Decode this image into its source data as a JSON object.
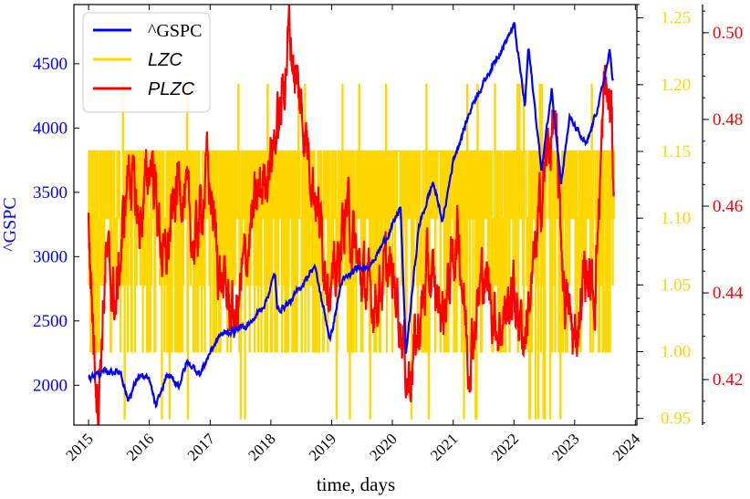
{
  "chart_data": {
    "type": "line",
    "xlabel": "time, days",
    "x_ticks": [
      "2015",
      "2016",
      "2017",
      "2018",
      "2019",
      "2020",
      "2021",
      "2022",
      "2023",
      "2024"
    ],
    "x_range": [
      "2014-10-05",
      "2024-01-10"
    ],
    "legend_position": "top-left",
    "axes": [
      {
        "id": "gspc",
        "label": "^GSPC",
        "side": "left",
        "color": "#0000ff",
        "range": [
          1690,
          4960
        ],
        "ticks": [
          2000,
          2500,
          3000,
          3500,
          4000,
          4500
        ]
      },
      {
        "id": "lzc",
        "label": "",
        "side": "right",
        "color": "#ffd700",
        "range": [
          0.945,
          1.26
        ],
        "ticks": [
          "0.95",
          "1.00",
          "1.05",
          "1.10",
          "1.15",
          "1.20",
          "1.25"
        ]
      },
      {
        "id": "plzc",
        "label": "",
        "side": "right-outer",
        "color": "#ff0000",
        "range": [
          0.4095,
          0.5065
        ],
        "ticks": [
          "0.42",
          "0.44",
          "0.46",
          "0.48",
          "0.50"
        ]
      }
    ],
    "series": [
      {
        "name": "^GSPC",
        "axis": "gspc",
        "color": "#0000ff",
        "legend_style": "serif",
        "points": [
          [
            "2015-01-01",
            2058
          ],
          [
            "2015-03-01",
            2090
          ],
          [
            "2015-05-15",
            2110
          ],
          [
            "2015-07-15",
            2100
          ],
          [
            "2015-08-25",
            1880
          ],
          [
            "2015-11-01",
            2080
          ],
          [
            "2016-01-01",
            2040
          ],
          [
            "2016-02-11",
            1830
          ],
          [
            "2016-04-15",
            2080
          ],
          [
            "2016-06-27",
            2000
          ],
          [
            "2016-08-15",
            2180
          ],
          [
            "2016-11-04",
            2090
          ],
          [
            "2017-01-01",
            2260
          ],
          [
            "2017-03-01",
            2390
          ],
          [
            "2017-06-01",
            2430
          ],
          [
            "2017-09-01",
            2480
          ],
          [
            "2017-12-01",
            2650
          ],
          [
            "2018-01-26",
            2870
          ],
          [
            "2018-02-08",
            2580
          ],
          [
            "2018-05-01",
            2650
          ],
          [
            "2018-09-20",
            2930
          ],
          [
            "2018-12-24",
            2350
          ],
          [
            "2019-03-01",
            2800
          ],
          [
            "2019-06-01",
            2900
          ],
          [
            "2019-09-01",
            2950
          ],
          [
            "2019-12-31",
            3230
          ],
          [
            "2020-02-19",
            3390
          ],
          [
            "2020-03-23",
            2240
          ],
          [
            "2020-06-08",
            3230
          ],
          [
            "2020-09-02",
            3580
          ],
          [
            "2020-10-30",
            3270
          ],
          [
            "2021-01-01",
            3750
          ],
          [
            "2021-05-01",
            4200
          ],
          [
            "2021-09-01",
            4500
          ],
          [
            "2022-01-03",
            4800
          ],
          [
            "2022-03-08",
            4170
          ],
          [
            "2022-03-29",
            4630
          ],
          [
            "2022-06-16",
            3670
          ],
          [
            "2022-08-16",
            4300
          ],
          [
            "2022-10-12",
            3580
          ],
          [
            "2022-12-01",
            4080
          ],
          [
            "2023-03-13",
            3860
          ],
          [
            "2023-06-01",
            4220
          ],
          [
            "2023-07-31",
            4590
          ],
          [
            "2023-08-20",
            4370
          ]
        ]
      },
      {
        "name": "LZC",
        "axis": "lzc",
        "color": "#ffd700",
        "legend_style": "italic",
        "start": "2015-01-01",
        "end": "2023-08-25",
        "levels": [
          0.95,
          1.0,
          1.05,
          1.1,
          1.15,
          1.2
        ],
        "mode_levels": [
          1.1,
          1.15
        ]
      },
      {
        "name": "PLZC",
        "axis": "plzc",
        "color": "#ff0000",
        "legend_style": "italic",
        "points": [
          [
            "2015-01-01",
            0.455
          ],
          [
            "2015-02-01",
            0.43
          ],
          [
            "2015-03-01",
            0.416
          ],
          [
            "2015-04-15",
            0.448
          ],
          [
            "2015-06-15",
            0.437
          ],
          [
            "2015-09-01",
            0.47
          ],
          [
            "2015-11-01",
            0.455
          ],
          [
            "2016-01-15",
            0.472
          ],
          [
            "2016-04-01",
            0.445
          ],
          [
            "2016-07-01",
            0.468
          ],
          [
            "2016-10-01",
            0.45
          ],
          [
            "2016-12-15",
            0.469
          ],
          [
            "2017-03-01",
            0.444
          ],
          [
            "2017-06-01",
            0.433
          ],
          [
            "2017-09-01",
            0.455
          ],
          [
            "2017-12-01",
            0.468
          ],
          [
            "2018-03-01",
            0.481
          ],
          [
            "2018-04-20",
            0.501
          ],
          [
            "2018-06-15",
            0.486
          ],
          [
            "2018-09-01",
            0.47
          ],
          [
            "2018-11-15",
            0.45
          ],
          [
            "2019-01-15",
            0.44
          ],
          [
            "2019-04-01",
            0.46
          ],
          [
            "2019-06-15",
            0.445
          ],
          [
            "2019-09-01",
            0.438
          ],
          [
            "2019-12-01",
            0.445
          ],
          [
            "2020-02-01",
            0.44
          ],
          [
            "2020-04-01",
            0.42
          ],
          [
            "2020-06-01",
            0.43
          ],
          [
            "2020-08-01",
            0.445
          ],
          [
            "2020-11-01",
            0.435
          ],
          [
            "2021-02-01",
            0.455
          ],
          [
            "2021-04-01",
            0.425
          ],
          [
            "2021-07-01",
            0.445
          ],
          [
            "2021-10-01",
            0.432
          ],
          [
            "2022-01-01",
            0.44
          ],
          [
            "2022-03-01",
            0.43
          ],
          [
            "2022-05-01",
            0.445
          ],
          [
            "2022-07-01",
            0.468
          ],
          [
            "2022-09-01",
            0.48
          ],
          [
            "2022-11-01",
            0.44
          ],
          [
            "2023-01-01",
            0.428
          ],
          [
            "2023-03-01",
            0.445
          ],
          [
            "2023-05-01",
            0.44
          ],
          [
            "2023-07-01",
            0.488
          ],
          [
            "2023-08-10",
            0.48
          ],
          [
            "2023-08-25",
            0.466
          ]
        ]
      }
    ]
  }
}
